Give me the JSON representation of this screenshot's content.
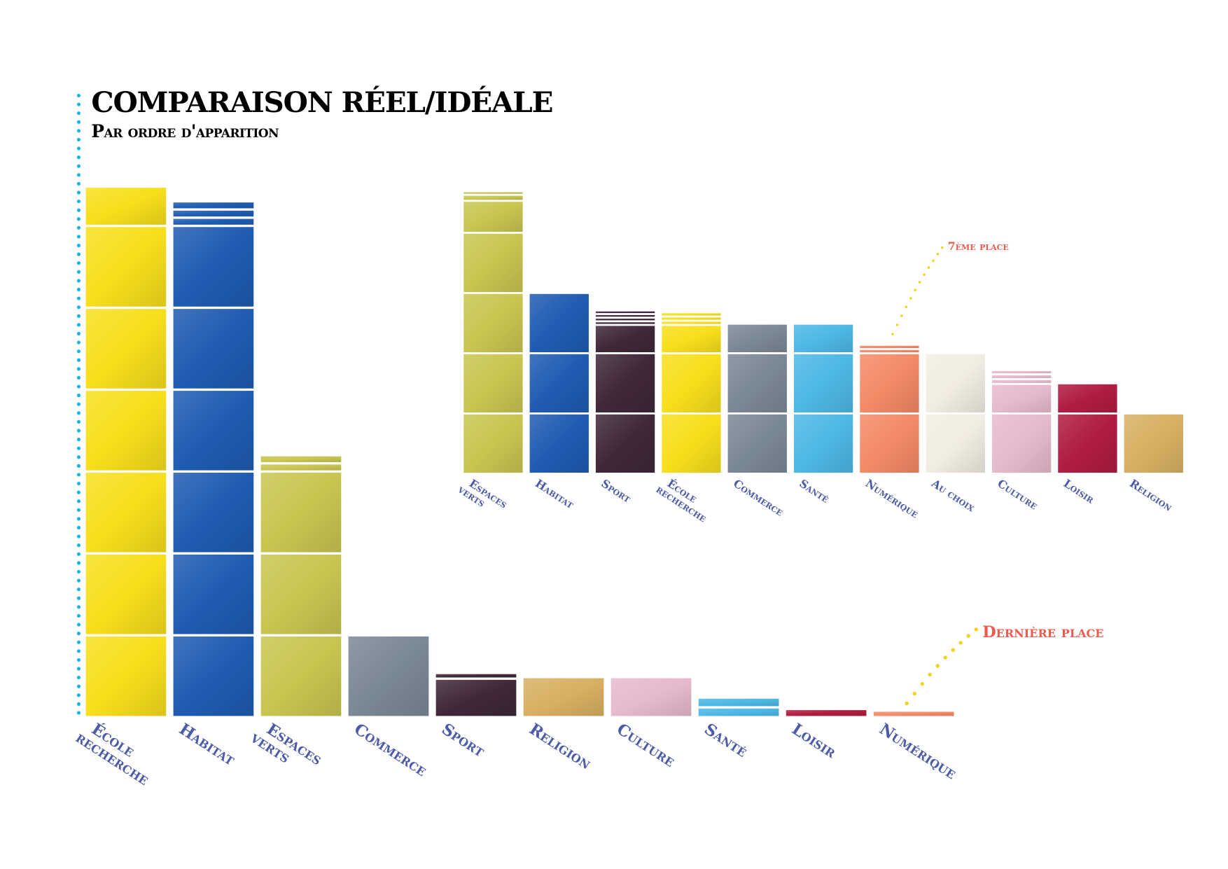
{
  "chart_data": [
    {
      "type": "bar",
      "stacked": true,
      "name": "reel",
      "title": "Comparaison réel/idéale",
      "subtitle": "Par ordre d'apparition",
      "unit_note": "each full block = 1 unit; bars drawn as stacked block segments",
      "categories": [
        [
          "École",
          "recherche"
        ],
        [
          "Habitat"
        ],
        [
          "Espaces",
          "verts"
        ],
        [
          "Commerce"
        ],
        [
          "Sport"
        ],
        [
          "Religion"
        ],
        [
          "Culture"
        ],
        [
          "Santé"
        ],
        [
          "Loisir"
        ],
        [
          "Numérique"
        ]
      ],
      "segments": [
        [
          1,
          1,
          1,
          1,
          1,
          1,
          0.48
        ],
        [
          1,
          1,
          1,
          1,
          1,
          1,
          0.1,
          0.1,
          0.1
        ],
        [
          1,
          1,
          1,
          0.1,
          0.1
        ],
        [
          1
        ],
        [
          0.47,
          0.07
        ],
        [
          0.49
        ],
        [
          0.49
        ],
        [
          0.12,
          0.12
        ],
        [
          0.1
        ],
        [
          0.08
        ]
      ],
      "values": [
        6.48,
        6.3,
        3.2,
        1,
        0.54,
        0.49,
        0.49,
        0.24,
        0.1,
        0.08
      ],
      "colors": [
        "#f7df1c",
        "#1f5cb2",
        "#c8c650",
        "#7b8895",
        "#3f2839",
        "#d8b062",
        "#e6bacd",
        "#4db8e6",
        "#b01c40",
        "#f48a67"
      ],
      "annotation": "Dernière place"
    },
    {
      "type": "bar",
      "stacked": true,
      "name": "ideal",
      "categories": [
        [
          "Espaces",
          "verts"
        ],
        [
          "Habitat"
        ],
        [
          "Sport"
        ],
        [
          "École",
          "recherche"
        ],
        [
          "Commerce"
        ],
        [
          "Santé"
        ],
        [
          "Numérique"
        ],
        [
          "Au choix"
        ],
        [
          "Culture"
        ],
        [
          "Loisir"
        ],
        [
          "Religion"
        ]
      ],
      "segments": [
        [
          1,
          1,
          1,
          1,
          0.53,
          0.1,
          0.06
        ],
        [
          1,
          1,
          1
        ],
        [
          1,
          1,
          0.47,
          0.06,
          0.06,
          0.06,
          0.06
        ],
        [
          1,
          1,
          0.47,
          0.07,
          0.07,
          0.07
        ],
        [
          1,
          1,
          0.49
        ],
        [
          1,
          1,
          0.49
        ],
        [
          1,
          1,
          0.07,
          0.07
        ],
        [
          1,
          1
        ],
        [
          1,
          0.49,
          0.08,
          0.08,
          0.07
        ],
        [
          1,
          0.5
        ],
        [
          1
        ]
      ],
      "values": [
        4.69,
        3,
        2.71,
        2.68,
        2.49,
        2.49,
        2.14,
        2,
        1.72,
        1.5,
        1
      ],
      "colors": [
        "#c8c650",
        "#1f5cb2",
        "#3f2839",
        "#f7df1c",
        "#7b8895",
        "#4db8e6",
        "#f48a67",
        "#f2ede2",
        "#e6bacd",
        "#b01c40",
        "#d8b062"
      ],
      "annotation": "7ème place"
    }
  ],
  "colors": {
    "axis_dots": "#1ab4e8",
    "label": "#4b5ba6",
    "annotation": "#ee5a4e",
    "leader_dots": "#f5d31c"
  }
}
